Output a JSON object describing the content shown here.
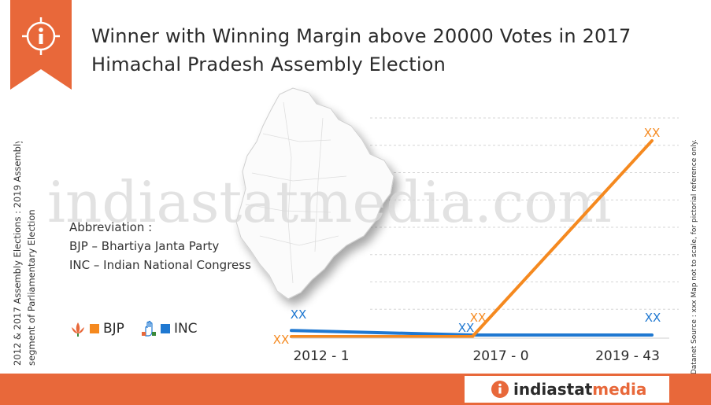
{
  "title": {
    "line1": "Winner with Winning Margin above 20000 Votes in 2017",
    "line2": "Himachal Pradesh Assembly Election"
  },
  "side_note_left": {
    "line1": "2012 & 2017 Assembly Elections : 2019 Assembly",
    "line2": "segment of Parliamentary Election"
  },
  "side_note_right": "© Datanet   Source : xxx Map not to scale, for pictorial reference only.",
  "watermark": "indiastatmedia.com",
  "abbreviation": {
    "heading": "Abbreviation :",
    "items": [
      "BJP – Bhartiya Janta Party",
      "INC – Indian National Congress"
    ]
  },
  "legend": [
    {
      "label": "BJP",
      "color": "#f5891f",
      "icon": "bjp-lotus-icon"
    },
    {
      "label": "INC",
      "color": "#1f78d1",
      "icon": "inc-hand-icon"
    }
  ],
  "footer": {
    "logo_text_1": "indiastat",
    "logo_text_2": "media",
    "logo_icon": "info-icon"
  },
  "colors": {
    "accent": "#e8683a",
    "bjp": "#f5891f",
    "inc": "#1f78d1"
  },
  "chart_data": {
    "type": "line",
    "categories": [
      "2012 - 1",
      "2017 - 0",
      "2019 - 43"
    ],
    "series": [
      {
        "name": "BJP",
        "values": [
          0,
          0,
          43
        ],
        "labels": [
          "XX",
          "XX",
          "XX"
        ],
        "color": "#f5891f"
      },
      {
        "name": "INC",
        "values": [
          1,
          0,
          0
        ],
        "labels": [
          "XX",
          "XX",
          "XX"
        ],
        "color": "#1f78d1"
      }
    ],
    "grid": true,
    "ylim": [
      0,
      48
    ]
  }
}
